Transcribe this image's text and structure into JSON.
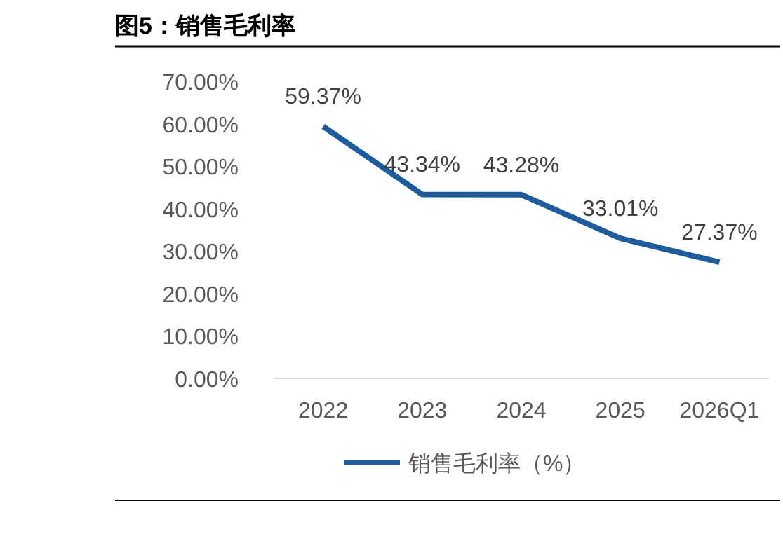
{
  "chart_data": {
    "type": "line",
    "title": "图5：销售毛利率",
    "categories": [
      "2022",
      "2023",
      "2024",
      "2025",
      "2026Q1"
    ],
    "series": [
      {
        "name": "销售毛利率（%）",
        "color": "#1f5c9e",
        "values": [
          59.37,
          43.34,
          43.28,
          33.01,
          27.37
        ],
        "value_labels": [
          "59.37%",
          "43.34%",
          "43.28%",
          "33.01%",
          "27.37%"
        ]
      }
    ],
    "ylim": [
      0,
      70
    ],
    "yticks": [
      {
        "value": 0,
        "label": "0.00%"
      },
      {
        "value": 10,
        "label": "10.00%"
      },
      {
        "value": 20,
        "label": "20.00%"
      },
      {
        "value": 30,
        "label": "30.00%"
      },
      {
        "value": 40,
        "label": "40.00%"
      },
      {
        "value": 50,
        "label": "50.00%"
      },
      {
        "value": 60,
        "label": "60.00%"
      },
      {
        "value": 70,
        "label": "70.00%"
      }
    ],
    "grid": false,
    "legend": "bottom",
    "marker": "none",
    "line_style": "solid"
  }
}
